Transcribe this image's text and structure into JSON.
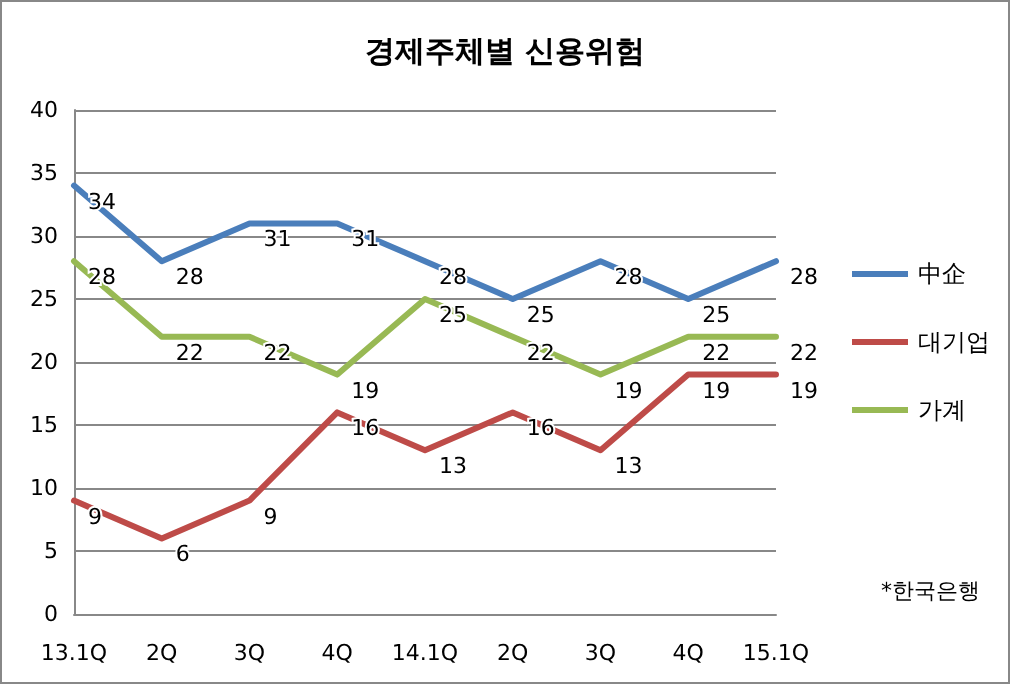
{
  "chart_data": {
    "type": "line",
    "title": "경제주체별 신용위험",
    "categories": [
      "13.1Q",
      "2Q",
      "3Q",
      "4Q",
      "14.1Q",
      "2Q",
      "3Q",
      "4Q",
      "15.1Q"
    ],
    "series": [
      {
        "name": "中企",
        "color": "#4a7ebb",
        "values": [
          34,
          28,
          31,
          31,
          28,
          25,
          28,
          25,
          28
        ]
      },
      {
        "name": "대기업",
        "color": "#be4b48",
        "values": [
          9,
          6,
          9,
          16,
          13,
          16,
          13,
          19,
          19
        ]
      },
      {
        "name": "가계",
        "color": "#98b954",
        "values": [
          28,
          22,
          22,
          19,
          25,
          22,
          19,
          22,
          22
        ]
      }
    ],
    "ylim": [
      0,
      40
    ],
    "yticks": [
      0,
      5,
      10,
      15,
      20,
      25,
      30,
      35,
      40
    ],
    "grid": "y",
    "legend": "right",
    "marker": "none",
    "data_labels": true,
    "annotations": [
      "*한국은행"
    ]
  }
}
